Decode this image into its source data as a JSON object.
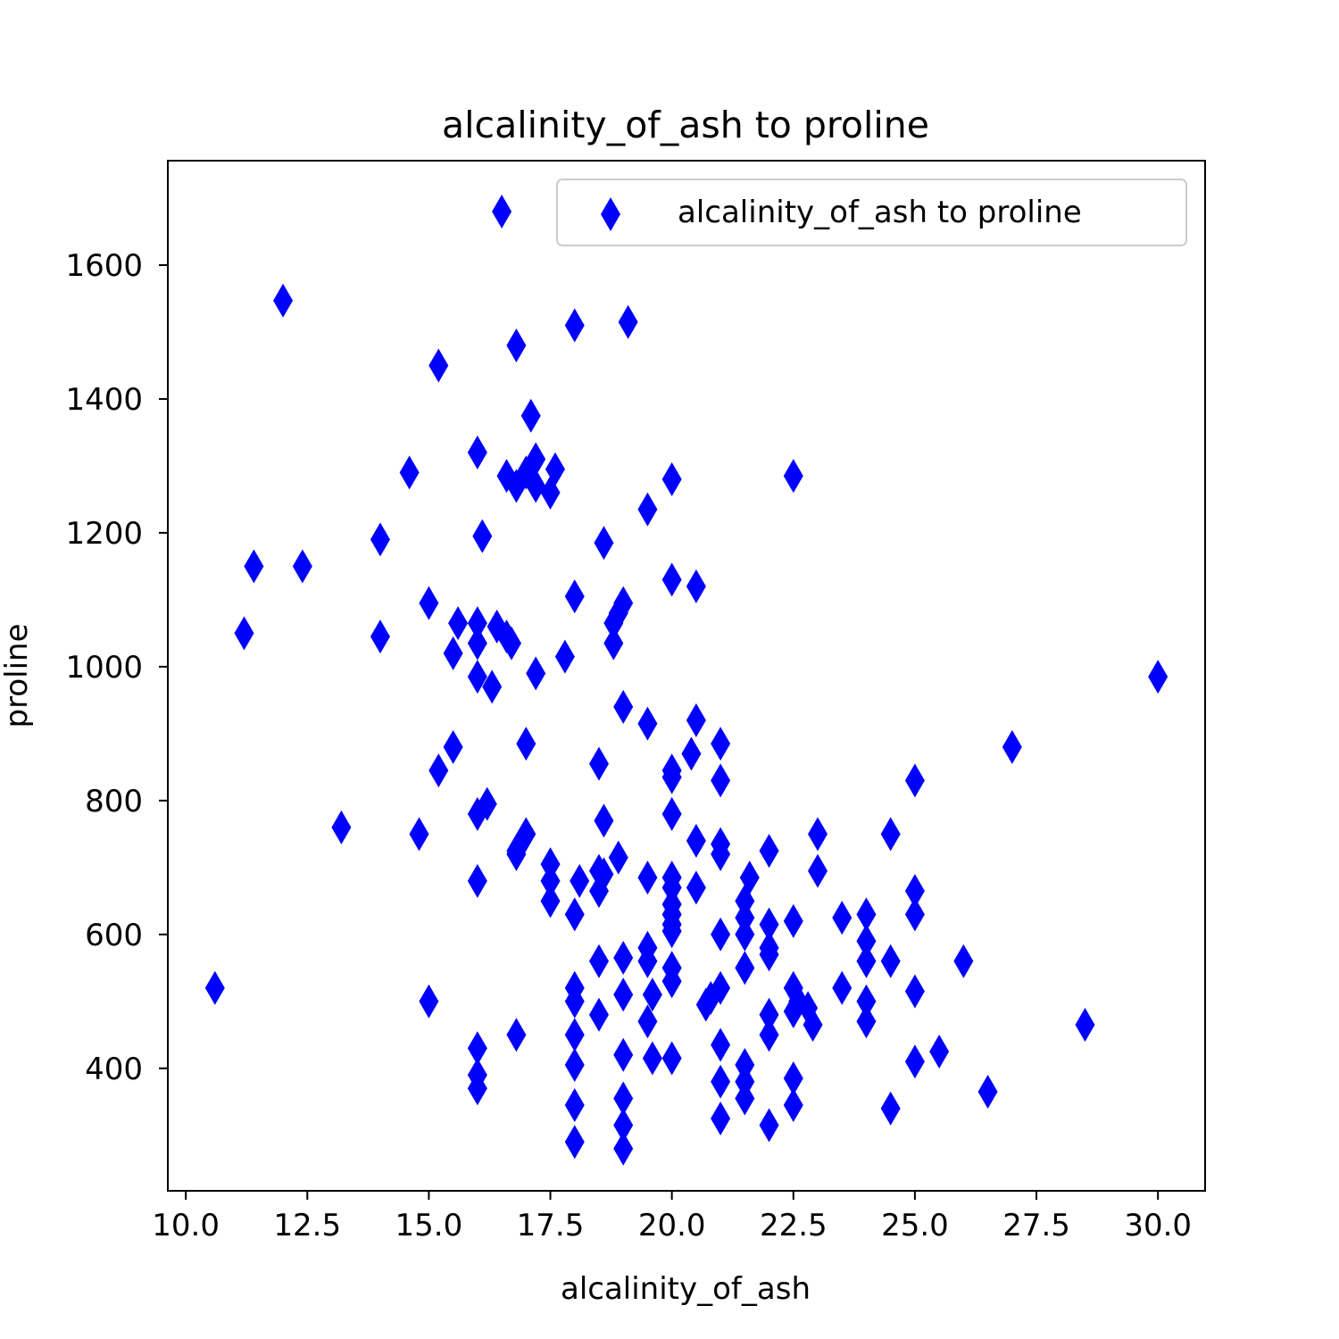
{
  "chart_data": {
    "type": "scatter",
    "title": "alcalinity_of_ash to proline",
    "xlabel": "alcalinity_of_ash",
    "ylabel": "proline",
    "xlim": [
      9.63,
      30.97
    ],
    "ylim": [
      217,
      1756
    ],
    "xticks": [
      "10.0",
      "12.5",
      "15.0",
      "17.5",
      "20.0",
      "22.5",
      "25.0",
      "27.5",
      "30.0"
    ],
    "yticks": [
      "400",
      "600",
      "800",
      "1000",
      "1200",
      "1400",
      "1600"
    ],
    "marker": "thin-diamond",
    "color": "#0000ff",
    "grid": false,
    "legend_position": "top-right",
    "series": [
      {
        "name": "alcalinity_of_ash to proline",
        "points": [
          [
            16.5,
            1680
          ],
          [
            12.0,
            1547
          ],
          [
            19.1,
            1515
          ],
          [
            18.0,
            1510
          ],
          [
            16.8,
            1480
          ],
          [
            15.2,
            1450
          ],
          [
            17.1,
            1375
          ],
          [
            16.0,
            1320
          ],
          [
            14.6,
            1290
          ],
          [
            17.2,
            1310
          ],
          [
            17.6,
            1295
          ],
          [
            16.6,
            1285
          ],
          [
            16.8,
            1270
          ],
          [
            17.0,
            1290
          ],
          [
            17.2,
            1270
          ],
          [
            17.5,
            1260
          ],
          [
            20.0,
            1280
          ],
          [
            22.5,
            1285
          ],
          [
            19.5,
            1235
          ],
          [
            16.1,
            1195
          ],
          [
            14.0,
            1190
          ],
          [
            18.6,
            1185
          ],
          [
            11.4,
            1150
          ],
          [
            12.4,
            1150
          ],
          [
            20.0,
            1130
          ],
          [
            20.5,
            1120
          ],
          [
            18.0,
            1105
          ],
          [
            15.0,
            1095
          ],
          [
            19.0,
            1095
          ],
          [
            18.9,
            1080
          ],
          [
            18.8,
            1065
          ],
          [
            15.6,
            1065
          ],
          [
            16.0,
            1065
          ],
          [
            16.4,
            1060
          ],
          [
            16.6,
            1045
          ],
          [
            11.2,
            1050
          ],
          [
            14.0,
            1045
          ],
          [
            16.7,
            1035
          ],
          [
            16.0,
            1035
          ],
          [
            18.8,
            1035
          ],
          [
            15.5,
            1020
          ],
          [
            17.8,
            1015
          ],
          [
            17.2,
            990
          ],
          [
            16.0,
            985
          ],
          [
            16.3,
            970
          ],
          [
            30.0,
            985
          ],
          [
            19.0,
            940
          ],
          [
            19.5,
            915
          ],
          [
            20.5,
            920
          ],
          [
            21.0,
            885
          ],
          [
            17.0,
            885
          ],
          [
            15.5,
            880
          ],
          [
            20.4,
            870
          ],
          [
            27.0,
            880
          ],
          [
            18.5,
            855
          ],
          [
            15.2,
            845
          ],
          [
            20.0,
            845
          ],
          [
            20.0,
            835
          ],
          [
            21.0,
            830
          ],
          [
            25.0,
            830
          ],
          [
            16.2,
            795
          ],
          [
            16.0,
            780
          ],
          [
            20.0,
            780
          ],
          [
            18.6,
            770
          ],
          [
            13.2,
            760
          ],
          [
            14.8,
            750
          ],
          [
            17.0,
            750
          ],
          [
            23.0,
            750
          ],
          [
            24.5,
            750
          ],
          [
            20.5,
            740
          ],
          [
            21.0,
            735
          ],
          [
            16.8,
            725
          ],
          [
            16.8,
            720
          ],
          [
            18.9,
            715
          ],
          [
            21.0,
            720
          ],
          [
            22.0,
            725
          ],
          [
            17.5,
            705
          ],
          [
            18.5,
            695
          ],
          [
            23.0,
            695
          ],
          [
            18.6,
            690
          ],
          [
            19.5,
            685
          ],
          [
            20.0,
            685
          ],
          [
            21.6,
            685
          ],
          [
            17.5,
            680
          ],
          [
            18.1,
            680
          ],
          [
            16.0,
            680
          ],
          [
            20.0,
            670
          ],
          [
            20.5,
            670
          ],
          [
            18.5,
            665
          ],
          [
            25.0,
            665
          ],
          [
            17.5,
            650
          ],
          [
            20.0,
            645
          ],
          [
            21.5,
            650
          ],
          [
            20.0,
            630
          ],
          [
            18.0,
            630
          ],
          [
            25.0,
            630
          ],
          [
            23.5,
            625
          ],
          [
            24.0,
            630
          ],
          [
            21.5,
            625
          ],
          [
            20.0,
            615
          ],
          [
            22.0,
            615
          ],
          [
            22.5,
            620
          ],
          [
            20.0,
            605
          ],
          [
            21.0,
            600
          ],
          [
            21.5,
            600
          ],
          [
            24.0,
            590
          ],
          [
            22.0,
            580
          ],
          [
            19.5,
            580
          ],
          [
            22.0,
            570
          ],
          [
            19.0,
            565
          ],
          [
            18.5,
            560
          ],
          [
            19.5,
            560
          ],
          [
            24.0,
            560
          ],
          [
            24.5,
            560
          ],
          [
            26.0,
            560
          ],
          [
            20.0,
            550
          ],
          [
            21.5,
            550
          ],
          [
            20.0,
            530
          ],
          [
            21.0,
            520
          ],
          [
            18.0,
            520
          ],
          [
            10.6,
            520
          ],
          [
            23.5,
            520
          ],
          [
            22.5,
            520
          ],
          [
            25.0,
            515
          ],
          [
            19.0,
            510
          ],
          [
            19.6,
            510
          ],
          [
            20.8,
            505
          ],
          [
            18.0,
            500
          ],
          [
            15.0,
            500
          ],
          [
            22.6,
            500
          ],
          [
            24.0,
            500
          ],
          [
            20.7,
            495
          ],
          [
            22.8,
            490
          ],
          [
            22.5,
            485
          ],
          [
            22.0,
            480
          ],
          [
            18.5,
            480
          ],
          [
            19.5,
            470
          ],
          [
            22.9,
            465
          ],
          [
            24.0,
            470
          ],
          [
            28.5,
            465
          ],
          [
            18.0,
            450
          ],
          [
            22.0,
            450
          ],
          [
            16.8,
            450
          ],
          [
            21.0,
            435
          ],
          [
            16.0,
            430
          ],
          [
            25.5,
            425
          ],
          [
            19.0,
            420
          ],
          [
            19.6,
            415
          ],
          [
            20.0,
            415
          ],
          [
            18.0,
            405
          ],
          [
            21.5,
            405
          ],
          [
            25.0,
            410
          ],
          [
            16.0,
            390
          ],
          [
            22.5,
            385
          ],
          [
            21.5,
            380
          ],
          [
            21.0,
            380
          ],
          [
            16.0,
            370
          ],
          [
            26.5,
            365
          ],
          [
            19.0,
            355
          ],
          [
            21.5,
            355
          ],
          [
            18.0,
            345
          ],
          [
            22.5,
            345
          ],
          [
            24.5,
            340
          ],
          [
            21.0,
            325
          ],
          [
            19.0,
            315
          ],
          [
            22.0,
            315
          ],
          [
            18.0,
            290
          ],
          [
            19.0,
            280
          ]
        ]
      }
    ]
  }
}
